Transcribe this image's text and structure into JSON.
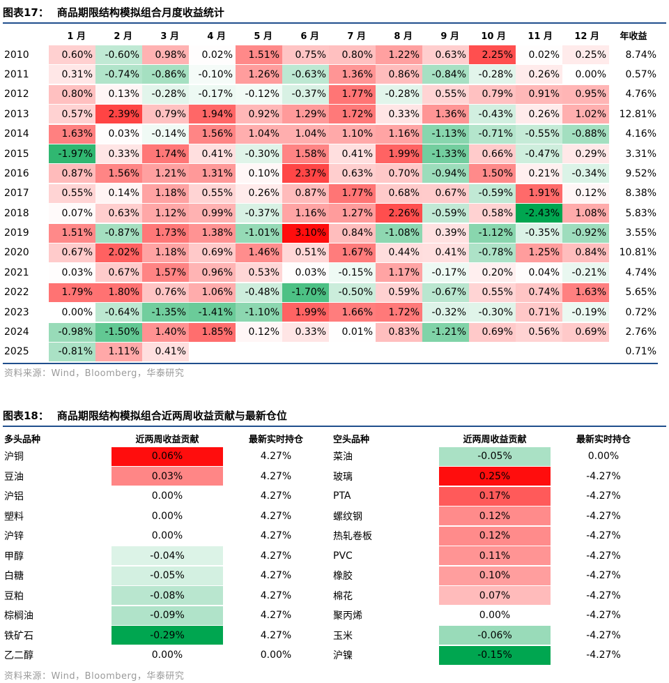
{
  "table1": {
    "fig_label": "图表17：",
    "title": "商品期限结构模拟组合月度收益统计",
    "months": [
      "1 月",
      "2 月",
      "3 月",
      "4 月",
      "5 月",
      "6 月",
      "7 月",
      "8 月",
      "9 月",
      "10 月",
      "11 月",
      "12 月"
    ],
    "annual_header": "年收益",
    "rows": [
      {
        "year": "2010",
        "values": [
          "0.60%",
          "-0.60%",
          "0.98%",
          "0.02%",
          "1.51%",
          "0.75%",
          "0.80%",
          "1.22%",
          "0.63%",
          "2.25%",
          "0.02%",
          "0.25%"
        ],
        "annual": "8.74%"
      },
      {
        "year": "2011",
        "values": [
          "0.31%",
          "-0.74%",
          "-0.86%",
          "-0.10%",
          "1.26%",
          "-0.63%",
          "1.36%",
          "0.86%",
          "-0.84%",
          "-0.28%",
          "0.26%",
          "0.00%"
        ],
        "annual": "0.57%"
      },
      {
        "year": "2012",
        "values": [
          "0.80%",
          "0.13%",
          "-0.28%",
          "-0.17%",
          "-0.12%",
          "-0.37%",
          "1.77%",
          "-0.28%",
          "0.55%",
          "0.79%",
          "0.91%",
          "0.95%"
        ],
        "annual": "4.76%"
      },
      {
        "year": "2013",
        "values": [
          "0.57%",
          "2.39%",
          "0.79%",
          "1.94%",
          "0.92%",
          "1.29%",
          "1.72%",
          "0.33%",
          "1.36%",
          "-0.43%",
          "0.26%",
          "1.02%"
        ],
        "annual": "12.81%"
      },
      {
        "year": "2014",
        "values": [
          "1.63%",
          "0.03%",
          "-0.14%",
          "1.56%",
          "1.04%",
          "1.04%",
          "1.10%",
          "1.16%",
          "-1.13%",
          "-0.71%",
          "-0.55%",
          "-0.88%"
        ],
        "annual": "4.16%"
      },
      {
        "year": "2015",
        "values": [
          "-1.97%",
          "0.33%",
          "1.74%",
          "0.41%",
          "-0.30%",
          "1.58%",
          "0.41%",
          "1.99%",
          "-1.33%",
          "0.66%",
          "-0.47%",
          "0.29%"
        ],
        "annual": "3.31%"
      },
      {
        "year": "2016",
        "values": [
          "0.87%",
          "1.56%",
          "1.21%",
          "1.31%",
          "0.10%",
          "2.37%",
          "0.63%",
          "0.70%",
          "-0.94%",
          "1.50%",
          "0.21%",
          "-0.34%"
        ],
        "annual": "9.52%"
      },
      {
        "year": "2017",
        "values": [
          "0.55%",
          "0.14%",
          "1.18%",
          "0.55%",
          "0.26%",
          "0.87%",
          "1.77%",
          "0.68%",
          "0.67%",
          "-0.59%",
          "1.91%",
          "0.12%"
        ],
        "annual": "8.38%"
      },
      {
        "year": "2018",
        "values": [
          "0.07%",
          "0.63%",
          "1.12%",
          "0.99%",
          "-0.37%",
          "1.16%",
          "1.27%",
          "2.26%",
          "-0.59%",
          "0.58%",
          "-2.43%",
          "1.08%"
        ],
        "annual": "5.83%"
      },
      {
        "year": "2019",
        "values": [
          "1.51%",
          "-0.87%",
          "1.73%",
          "1.38%",
          "-1.01%",
          "3.10%",
          "0.84%",
          "-1.08%",
          "0.39%",
          "-1.12%",
          "-0.35%",
          "-0.92%"
        ],
        "annual": "3.55%"
      },
      {
        "year": "2020",
        "values": [
          "0.67%",
          "2.02%",
          "1.18%",
          "0.69%",
          "1.46%",
          "0.51%",
          "1.67%",
          "0.44%",
          "0.41%",
          "-0.78%",
          "1.25%",
          "0.84%"
        ],
        "annual": "10.81%"
      },
      {
        "year": "2021",
        "values": [
          "0.03%",
          "0.67%",
          "1.57%",
          "0.96%",
          "0.53%",
          "0.03%",
          "-0.15%",
          "1.17%",
          "-0.17%",
          "0.20%",
          "0.04%",
          "-0.21%"
        ],
        "annual": "4.74%"
      },
      {
        "year": "2022",
        "values": [
          "1.79%",
          "1.80%",
          "0.76%",
          "1.06%",
          "-0.48%",
          "-1.70%",
          "-0.50%",
          "0.59%",
          "-0.67%",
          "0.55%",
          "0.74%",
          "1.63%"
        ],
        "annual": "5.65%"
      },
      {
        "year": "2023",
        "values": [
          "0.00%",
          "-0.64%",
          "-1.35%",
          "-1.41%",
          "-1.10%",
          "1.99%",
          "1.66%",
          "1.72%",
          "-0.32%",
          "-0.30%",
          "0.71%",
          "-0.19%"
        ],
        "annual": "0.72%"
      },
      {
        "year": "2024",
        "values": [
          "-0.98%",
          "-1.50%",
          "1.40%",
          "1.85%",
          "0.12%",
          "0.33%",
          "0.01%",
          "0.83%",
          "-1.21%",
          "0.69%",
          "0.56%",
          "0.69%"
        ],
        "annual": "2.76%"
      },
      {
        "year": "2025",
        "values": [
          "-0.81%",
          "1.11%",
          "0.41%",
          "",
          "",
          "",
          "",
          "",
          "",
          "",
          "",
          ""
        ],
        "annual": "0.71%"
      }
    ],
    "source": "资料来源：Wind，Bloomberg，华泰研究"
  },
  "table2": {
    "fig_label": "图表18：",
    "title": "商品期限结构模拟组合近两周收益贡献与最新仓位",
    "headers": {
      "long_name": "多头品种",
      "long_contrib": "近两周收益贡献",
      "long_pos": "最新实时持仓",
      "short_name": "空头品种",
      "short_contrib": "近两周收益贡献",
      "short_pos": "最新实时持仓"
    },
    "rows": [
      {
        "long": "沪铜",
        "lc": "0.06%",
        "lp": "4.27%",
        "short": "菜油",
        "sc": "-0.05%",
        "sp": "0.00%"
      },
      {
        "long": "豆油",
        "lc": "0.03%",
        "lp": "4.27%",
        "short": "玻璃",
        "sc": "0.25%",
        "sp": "-4.27%"
      },
      {
        "long": "沪铝",
        "lc": "0.00%",
        "lp": "4.27%",
        "short": "PTA",
        "sc": "0.17%",
        "sp": "-4.27%"
      },
      {
        "long": "塑料",
        "lc": "0.00%",
        "lp": "4.27%",
        "short": "螺纹钢",
        "sc": "0.12%",
        "sp": "-4.27%"
      },
      {
        "long": "沪锌",
        "lc": "0.00%",
        "lp": "4.27%",
        "short": "热轧卷板",
        "sc": "0.12%",
        "sp": "-4.27%"
      },
      {
        "long": "甲醇",
        "lc": "-0.04%",
        "lp": "4.27%",
        "short": "PVC",
        "sc": "0.11%",
        "sp": "-4.27%"
      },
      {
        "long": "白糖",
        "lc": "-0.05%",
        "lp": "4.27%",
        "short": "橡胶",
        "sc": "0.10%",
        "sp": "-4.27%"
      },
      {
        "long": "豆粕",
        "lc": "-0.08%",
        "lp": "4.27%",
        "short": "棉花",
        "sc": "0.07%",
        "sp": "-4.27%"
      },
      {
        "long": "棕榈油",
        "lc": "-0.09%",
        "lp": "4.27%",
        "short": "聚丙烯",
        "sc": "0.00%",
        "sp": "-4.27%"
      },
      {
        "long": "铁矿石",
        "lc": "-0.29%",
        "lp": "4.27%",
        "short": "玉米",
        "sc": "-0.06%",
        "sp": "-4.27%"
      },
      {
        "long": "乙二醇",
        "lc": "0.00%",
        "lp": "0.00%",
        "short": "沪镍",
        "sc": "-0.15%",
        "sp": "-4.27%"
      }
    ],
    "source": "资料来源：Wind，Bloomberg，华泰研究"
  },
  "colors": {
    "accent": "#1f4e8c",
    "pos_max": "#ff0000",
    "neg_max": "#00a650"
  }
}
